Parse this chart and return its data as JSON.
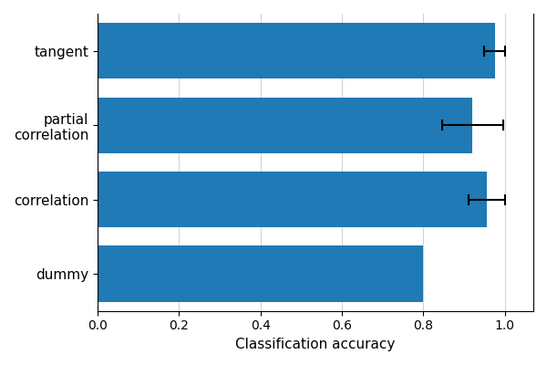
{
  "categories": [
    "dummy",
    "correlation",
    "partial\ncorrelation",
    "tangent"
  ],
  "values": [
    0.8,
    0.955,
    0.92,
    0.975
  ],
  "errors": [
    0.0,
    0.045,
    0.075,
    0.025
  ],
  "bar_color": "#1f7ab5",
  "xlabel": "Classification accuracy",
  "xlim": [
    0.0,
    1.07
  ],
  "xticks": [
    0.0,
    0.2,
    0.4,
    0.6,
    0.8,
    1.0
  ],
  "grid": true,
  "figsize": [
    6.0,
    4.0
  ],
  "dpi": 100,
  "bar_height": 0.75
}
